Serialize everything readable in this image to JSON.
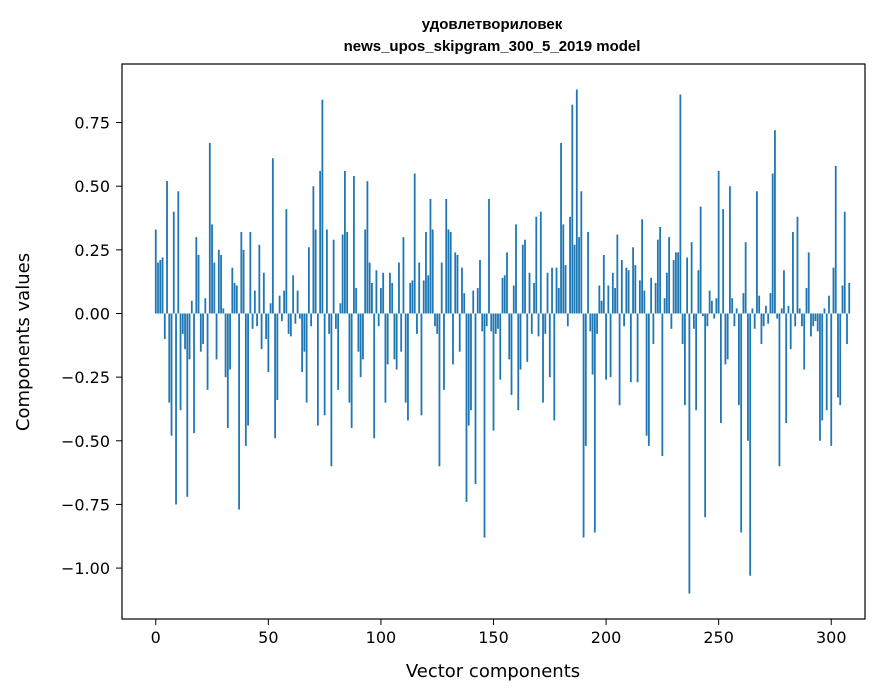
{
  "chart_data": {
    "type": "bar",
    "title": "удовлетвориловек",
    "subtitle": "news_upos_skipgram_300_5_2019 model",
    "xlabel": "Vector components",
    "ylabel": "Components values",
    "xlim": [
      -15,
      315
    ],
    "ylim": [
      -1.2,
      0.98
    ],
    "xticks": [
      0,
      50,
      100,
      150,
      200,
      250,
      300
    ],
    "yticks": [
      -1.0,
      -0.75,
      -0.5,
      -0.25,
      0.0,
      0.25,
      0.5,
      0.75
    ],
    "ytick_labels": [
      "−1.00",
      "−0.75",
      "−0.50",
      "−0.25",
      "0.00",
      "0.25",
      "0.50",
      "0.75"
    ],
    "grid": false,
    "bar_color": "#1f77b4",
    "values": [
      0.33,
      0.2,
      0.21,
      0.22,
      -0.1,
      0.52,
      -0.35,
      -0.48,
      0.4,
      -0.75,
      0.48,
      -0.38,
      -0.08,
      -0.14,
      -0.72,
      -0.18,
      0.05,
      -0.47,
      0.3,
      0.23,
      -0.15,
      -0.12,
      0.06,
      -0.3,
      0.67,
      0.35,
      0.2,
      -0.18,
      0.25,
      0.23,
      0.02,
      -0.25,
      -0.45,
      -0.22,
      0.18,
      0.12,
      0.11,
      -0.77,
      0.32,
      0.25,
      -0.52,
      -0.44,
      0.32,
      -0.06,
      0.09,
      -0.05,
      0.27,
      -0.14,
      0.16,
      -0.1,
      -0.23,
      0.04,
      0.61,
      -0.49,
      -0.34,
      0.07,
      -0.03,
      0.09,
      0.41,
      -0.08,
      -0.09,
      0.15,
      -0.04,
      0.09,
      -0.02,
      -0.23,
      -0.15,
      -0.35,
      0.26,
      -0.05,
      0.5,
      0.33,
      -0.44,
      0.56,
      0.84,
      -0.4,
      0.33,
      -0.08,
      -0.6,
      0.29,
      -0.06,
      -0.3,
      0.04,
      0.31,
      0.56,
      0.32,
      -0.35,
      -0.45,
      0.54,
      0.1,
      -0.15,
      -0.25,
      -0.18,
      0.33,
      0.52,
      0.2,
      0.12,
      -0.49,
      0.17,
      -0.05,
      0.1,
      0.16,
      -0.35,
      -0.2,
      0.16,
      0.12,
      -0.18,
      -0.22,
      0.2,
      -0.15,
      0.3,
      -0.35,
      -0.42,
      0.12,
      0.13,
      0.55,
      -0.08,
      0.2,
      -0.4,
      0.13,
      0.32,
      0.15,
      0.45,
      0.33,
      -0.05,
      -0.08,
      -0.6,
      0.2,
      -0.3,
      0.45,
      0.33,
      0.32,
      -0.2,
      0.24,
      0.23,
      -0.15,
      0.18,
      0.08,
      -0.74,
      -0.44,
      -0.38,
      0.09,
      -0.67,
      0.1,
      0.21,
      -0.07,
      -0.88,
      -0.05,
      0.45,
      -0.07,
      -0.46,
      -0.08,
      -0.06,
      -0.26,
      0.14,
      0.15,
      0.24,
      -0.18,
      -0.32,
      0.11,
      0.35,
      -0.38,
      -0.22,
      0.27,
      0.29,
      -0.19,
      0.16,
      -0.08,
      0.12,
      0.38,
      -0.09,
      0.4,
      -0.35,
      -0.08,
      0.16,
      -0.25,
      0.18,
      -0.42,
      0.18,
      0.1,
      0.67,
      0.35,
      0.19,
      -0.05,
      0.38,
      0.82,
      0.27,
      0.88,
      0.3,
      0.48,
      -0.88,
      -0.52,
      0.32,
      -0.07,
      -0.24,
      -0.86,
      -0.08,
      0.11,
      0.05,
      0.23,
      -0.26,
      0.11,
      -0.25,
      0.16,
      0.1,
      0.31,
      -0.36,
      0.21,
      -0.05,
      0.18,
      0.17,
      -0.27,
      0.26,
      0.19,
      -0.27,
      0.13,
      0.37,
      0.09,
      -0.48,
      -0.52,
      0.14,
      -0.12,
      0.12,
      0.29,
      0.34,
      -0.56,
      0.06,
      0.16,
      0.3,
      -0.06,
      0.21,
      0.24,
      0.24,
      0.86,
      -0.12,
      -0.36,
      0.22,
      -1.1,
      0.28,
      -0.06,
      -0.38,
      0.17,
      0.42,
      -0.01,
      -0.8,
      -0.05,
      0.09,
      0.05,
      -0.02,
      0.06,
      0.56,
      -0.43,
      0.41,
      -0.2,
      -0.18,
      0.5,
      0.06,
      -0.05,
      0.02,
      -0.36,
      -0.86,
      0.08,
      0.28,
      -0.5,
      -1.03,
      0.02,
      -0.06,
      0.48,
      0.07,
      -0.12,
      -0.05,
      0.03,
      -0.04,
      0.08,
      0.55,
      0.72,
      -0.02,
      -0.6,
      0.02,
      0.17,
      -0.43,
      0.03,
      -0.14,
      0.32,
      -0.05,
      0.38,
      0.02,
      -0.05,
      -0.22,
      0.1,
      0.24,
      -0.09,
      -0.05,
      -0.03,
      -0.07,
      -0.5,
      -0.42,
      0.02,
      -0.38,
      0.07,
      -0.52,
      0.18,
      0.58,
      -0.33,
      -0.36,
      0.11,
      0.4,
      -0.12,
      0.12
    ]
  }
}
